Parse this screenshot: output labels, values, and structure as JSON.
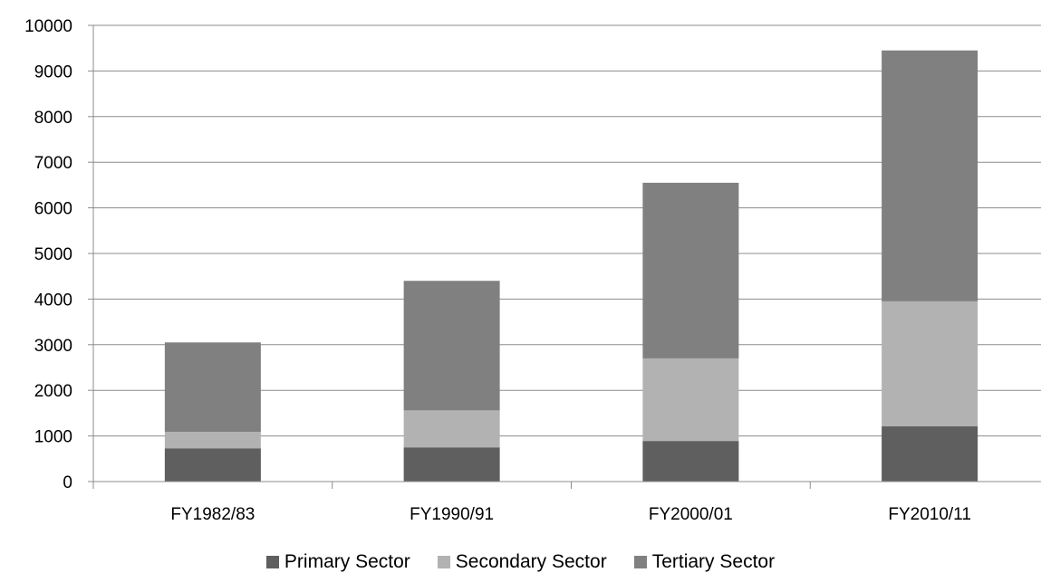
{
  "chart_data": {
    "type": "bar",
    "stacked": true,
    "categories": [
      "FY1982/83",
      "FY1990/91",
      "FY2000/01",
      "FY2010/11"
    ],
    "series": [
      {
        "name": "Primary Sector",
        "color": "#5f5f5f",
        "values": [
          730,
          750,
          890,
          1210
        ]
      },
      {
        "name": "Secondary Sector",
        "color": "#b2b2b2",
        "values": [
          360,
          810,
          1810,
          2740
        ]
      },
      {
        "name": "Tertiary Sector",
        "color": "#808080",
        "values": [
          1960,
          2840,
          3850,
          5500
        ]
      }
    ],
    "yticks": [
      "0",
      "1000",
      "2000",
      "3000",
      "4000",
      "5000",
      "6000",
      "7000",
      "8000",
      "9000",
      "10000"
    ],
    "ylim": [
      0,
      10000
    ],
    "grid": true,
    "legend": "bottom"
  }
}
